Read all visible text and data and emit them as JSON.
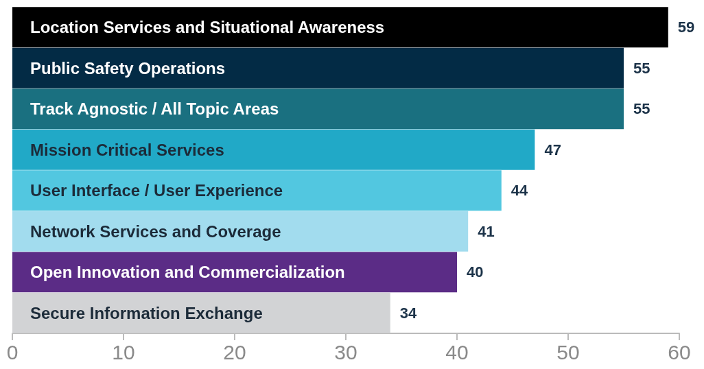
{
  "chart_data": {
    "type": "bar",
    "orientation": "horizontal",
    "categories": [
      "Location Services and Situational Awareness",
      "Public Safety Operations",
      "Track Agnostic / All Topic Areas",
      "Mission Critical Services",
      "User Interface / User Experience",
      "Network Services and Coverage",
      "Open Innovation and Commercialization",
      "Secure Information Exchange"
    ],
    "values": [
      59,
      55,
      55,
      47,
      44,
      41,
      40,
      34
    ],
    "colors": [
      "#000000",
      "#032b45",
      "#1a7080",
      "#21a9c7",
      "#52c7e0",
      "#a2dcee",
      "#5b2c86",
      "#d2d3d5"
    ],
    "xlim": [
      0,
      60
    ],
    "xticks": [
      0,
      10,
      20,
      30,
      40,
      50,
      60
    ],
    "grid": false,
    "data_labels": true
  }
}
